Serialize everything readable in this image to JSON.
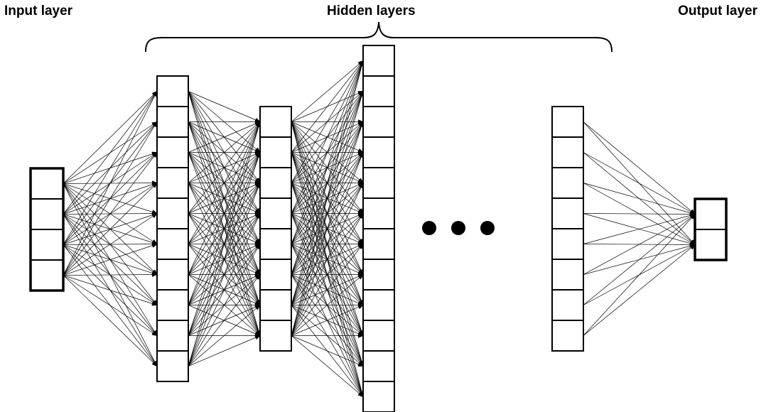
{
  "labels": {
    "input": "Input layer",
    "hidden": "Hidden layers",
    "output": "Output layer"
  },
  "network": {
    "layers": [
      {
        "name": "input",
        "neurons": 4
      },
      {
        "name": "hidden-1",
        "neurons": 10
      },
      {
        "name": "hidden-2",
        "neurons": 8
      },
      {
        "name": "hidden-3",
        "neurons": 12
      },
      {
        "name": "hidden-last",
        "neurons": 8
      },
      {
        "name": "output",
        "neurons": 2
      }
    ],
    "ellipsis_dots": 3
  },
  "colors": {
    "stroke": "#000000",
    "fill": "#ffffff"
  }
}
